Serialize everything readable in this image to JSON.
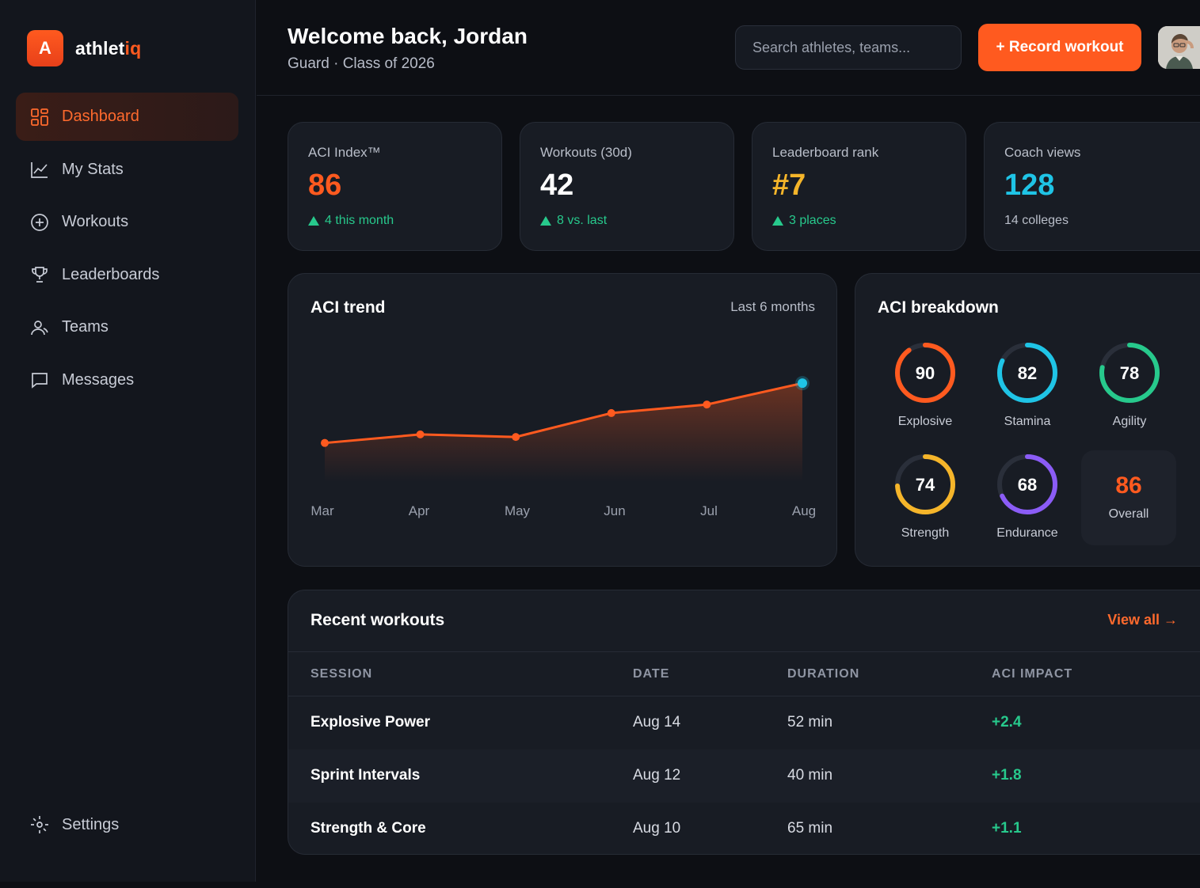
{
  "brand": {
    "letter": "A",
    "name_main": "athlet",
    "name_accent": "iq"
  },
  "sidebar": {
    "items": [
      {
        "label": "Dashboard",
        "icon": "grid-icon",
        "active": true
      },
      {
        "label": "My Stats",
        "icon": "chart-line-icon"
      },
      {
        "label": "Workouts",
        "icon": "plus-circle-icon"
      },
      {
        "label": "Leaderboards",
        "icon": "trophy-icon"
      },
      {
        "label": "Teams",
        "icon": "user-icon"
      },
      {
        "label": "Messages",
        "icon": "message-icon"
      }
    ],
    "settings_label": "Settings"
  },
  "header": {
    "welcome": "Welcome back, Jordan",
    "subtitle": "Guard · Class of 2026",
    "search_placeholder": "Search athletes, teams...",
    "record_label": "+ Record workout"
  },
  "stats": [
    {
      "label": "ACI Index™",
      "value": "86",
      "delta": "4 this month",
      "color": "#ff5a1f",
      "trend": "up"
    },
    {
      "label": "Workouts (30d)",
      "value": "42",
      "delta": "8 vs. last",
      "color": "#ffffff",
      "trend": "up"
    },
    {
      "label": "Leaderboard rank",
      "value": "#7",
      "delta": "3 places",
      "color": "#f5b52a",
      "trend": "up"
    },
    {
      "label": "Coach views",
      "value": "128",
      "delta": "14 colleges",
      "color": "#1fc4e6",
      "trend": "none"
    }
  ],
  "trend": {
    "title": "ACI trend",
    "range": "Last 6 months"
  },
  "chart_data": {
    "type": "area",
    "categories": [
      "Mar",
      "Apr",
      "May",
      "Jun",
      "Jul",
      "Aug"
    ],
    "values": [
      72,
      74,
      73.4,
      79,
      81,
      86
    ],
    "ylim": [
      56,
      94
    ],
    "title": "ACI trend",
    "line_color": "#ff5a1f",
    "highlight_color": "#1fc4e6",
    "grid": false
  },
  "breakdown": {
    "title": "ACI breakdown",
    "metrics": [
      {
        "label": "Explosive",
        "value": 90,
        "color": "#ff5a1f"
      },
      {
        "label": "Stamina",
        "value": 82,
        "color": "#1fc4e6"
      },
      {
        "label": "Agility",
        "value": 78,
        "color": "#27c98c"
      },
      {
        "label": "Strength",
        "value": 74,
        "color": "#f5b52a"
      },
      {
        "label": "Endurance",
        "value": 68,
        "color": "#8b5cf6"
      }
    ],
    "overall_value": "86",
    "overall_label": "Overall"
  },
  "workouts": {
    "title": "Recent workouts",
    "view_all": "View all →",
    "columns": [
      "SESSION",
      "DATE",
      "DURATION",
      "ACI IMPACT"
    ],
    "rows": [
      {
        "session": "Explosive Power",
        "date": "Aug 14",
        "duration": "52 min",
        "impact": "+2.4"
      },
      {
        "session": "Sprint Intervals",
        "date": "Aug 12",
        "duration": "40 min",
        "impact": "+1.8"
      },
      {
        "session": "Strength & Core",
        "date": "Aug 10",
        "duration": "65 min",
        "impact": "+1.1"
      }
    ]
  }
}
